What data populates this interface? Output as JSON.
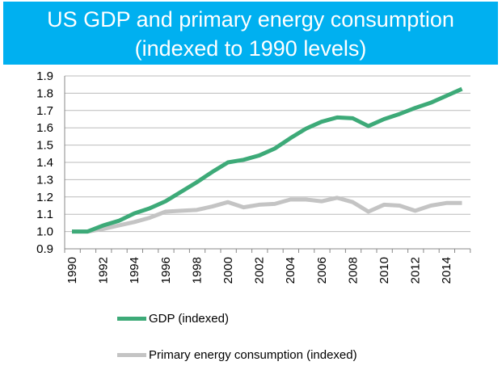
{
  "title_lines": [
    "US GDP and primary energy consumption",
    "(indexed to 1990 levels)"
  ],
  "chart_data": {
    "type": "line",
    "title": "US GDP and primary energy consumption (indexed to 1990 levels)",
    "x": [
      1990,
      1991,
      1992,
      1993,
      1994,
      1995,
      1996,
      1997,
      1998,
      1999,
      2000,
      2001,
      2002,
      2003,
      2004,
      2005,
      2006,
      2007,
      2008,
      2009,
      2010,
      2011,
      2012,
      2013,
      2014,
      2015
    ],
    "xticks": [
      "1990",
      "1992",
      "1994",
      "1996",
      "1998",
      "2000",
      "2002",
      "2004",
      "2006",
      "2008",
      "2010",
      "2012",
      "2014"
    ],
    "yticks": [
      "0.9",
      "1.0",
      "1.1",
      "1.2",
      "1.3",
      "1.4",
      "1.5",
      "1.6",
      "1.7",
      "1.8",
      "1.9"
    ],
    "ylim": [
      0.9,
      1.9
    ],
    "grid": true,
    "legend_placement": "bottom",
    "series": [
      {
        "name": "GDP (indexed)",
        "color": "#3daa78",
        "values": [
          1.0,
          1.0,
          1.035,
          1.062,
          1.105,
          1.135,
          1.175,
          1.23,
          1.285,
          1.345,
          1.4,
          1.415,
          1.44,
          1.48,
          1.54,
          1.595,
          1.635,
          1.66,
          1.655,
          1.61,
          1.65,
          1.68,
          1.715,
          1.745,
          1.785,
          1.825
        ]
      },
      {
        "name": "Primary energy consumption (indexed)",
        "color": "#c4c4c4",
        "values": [
          1.0,
          1.0,
          1.015,
          1.035,
          1.055,
          1.08,
          1.115,
          1.12,
          1.125,
          1.145,
          1.17,
          1.14,
          1.155,
          1.16,
          1.185,
          1.185,
          1.175,
          1.195,
          1.17,
          1.115,
          1.155,
          1.15,
          1.12,
          1.15,
          1.165,
          1.165
        ]
      }
    ]
  }
}
